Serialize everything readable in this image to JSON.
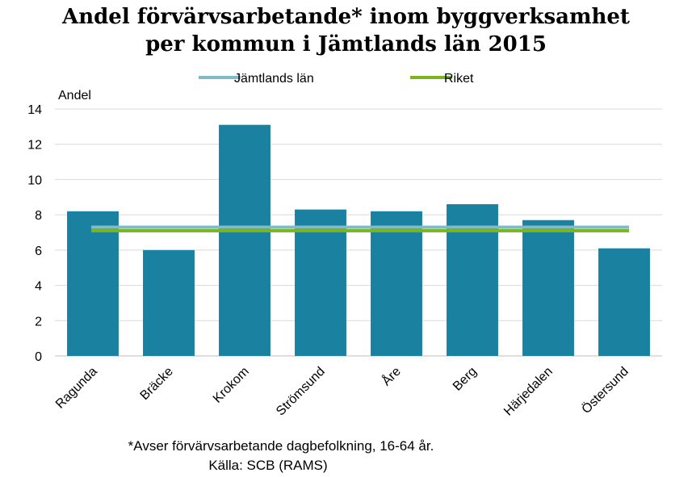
{
  "chart_data": {
    "type": "bar",
    "title_lines": [
      "Andel förvärvsarbetande* inom byggverksamhet",
      "per kommun i Jämtlands län 2015"
    ],
    "ylabel": "Andel",
    "xlabel": "",
    "categories": [
      "Ragunda",
      "Bräcke",
      "Krokom",
      "Strömsund",
      "Åre",
      "Berg",
      "Härjedalen",
      "Östersund"
    ],
    "values": [
      8.2,
      6.0,
      13.1,
      8.3,
      8.2,
      8.6,
      7.7,
      6.1
    ],
    "reference_lines": [
      {
        "name": "Jämtlands län",
        "value": 7.3,
        "color": "#7fbbc9"
      },
      {
        "name": "Riket",
        "value": 7.1,
        "color": "#7ab51d"
      }
    ],
    "bar_color": "#1a82a0",
    "ylim": [
      0,
      14
    ],
    "yticks": [
      0,
      2,
      4,
      6,
      8,
      10,
      12,
      14
    ],
    "grid": true,
    "legend_position": "top"
  },
  "footnote": {
    "line1": "*Avser förvärvsarbetande dagbefolkning,  16-64 år.",
    "line2": "Källa: SCB (RAMS)"
  }
}
